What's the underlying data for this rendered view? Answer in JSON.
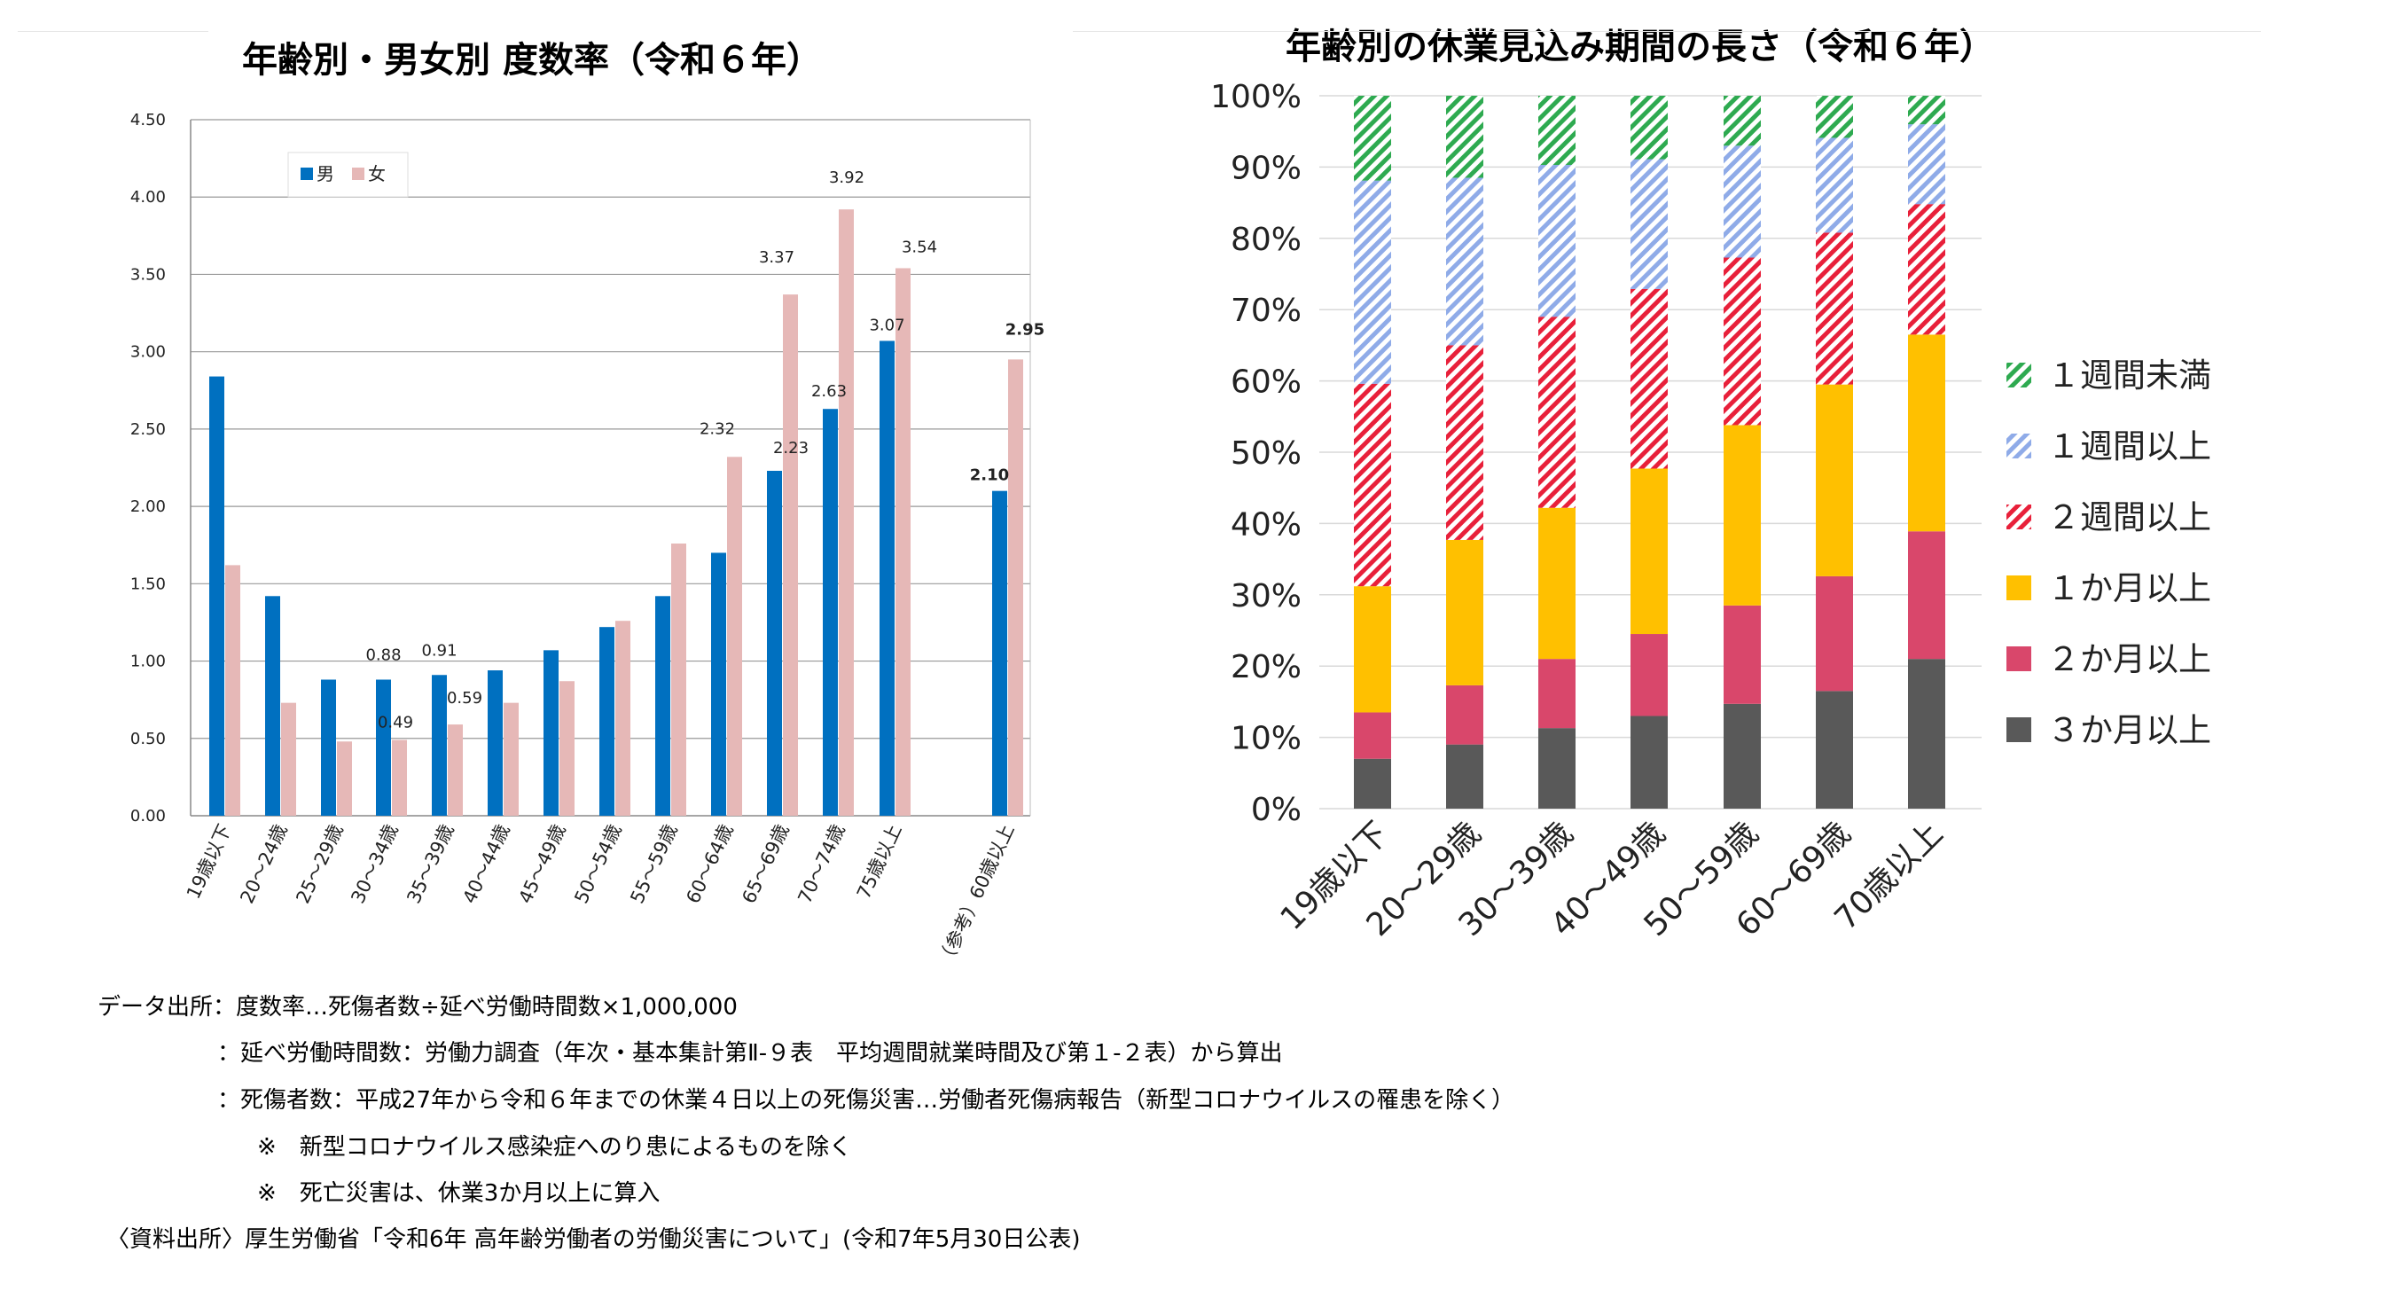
{
  "colors": {
    "male": "#0070c0",
    "female": "#e6b8b7",
    "green": "#2eaa50",
    "blue": "#8fabe8",
    "red": "#e8203a",
    "yellow": "#ffc000",
    "crimson": "#d9476b",
    "darkgray": "#595959"
  },
  "chart_data": [
    {
      "type": "bar",
      "title": "年齢別・男女別 度数率（令和６年）",
      "categories": [
        "19歳以下",
        "20～24歳",
        "25～29歳",
        "30～34歳",
        "35～39歳",
        "40～44歳",
        "45～49歳",
        "50～54歳",
        "55～59歳",
        "60～64歳",
        "65～69歳",
        "70～74歳",
        "75歳以上",
        "（参考）60歳以上"
      ],
      "series": [
        {
          "name": "男",
          "color": "#0070c0",
          "values": [
            2.84,
            1.42,
            0.88,
            0.88,
            0.91,
            0.94,
            1.07,
            1.22,
            1.42,
            1.7,
            2.23,
            2.63,
            3.07,
            2.1
          ]
        },
        {
          "name": "女",
          "color": "#e6b8b7",
          "values": [
            1.62,
            0.73,
            0.48,
            0.49,
            0.59,
            0.73,
            0.87,
            1.26,
            1.76,
            2.32,
            3.37,
            3.92,
            3.54,
            2.95
          ]
        }
      ],
      "labels_male": [
        "",
        "",
        "",
        "0.88",
        "0.91",
        "",
        "",
        "",
        "",
        "",
        "2.23",
        "2.63",
        "3.07",
        "2.10"
      ],
      "labels_female": [
        "",
        "",
        "",
        "0.49",
        "0.59",
        "",
        "",
        "",
        "",
        "2.32",
        "3.37",
        "3.92",
        "3.54",
        "2.95"
      ],
      "ylim": [
        0,
        4.5
      ],
      "yticks": [
        "0.00",
        "0.50",
        "1.00",
        "1.50",
        "2.00",
        "2.50",
        "3.00",
        "3.50",
        "4.00",
        "4.50"
      ],
      "legend": [
        "男",
        "女"
      ],
      "legend_position": "top-left",
      "grid": true
    },
    {
      "type": "bar",
      "stacked": true,
      "percent": true,
      "title": "年齢別の休業見込み期間の長さ（令和６年）",
      "categories": [
        "19歳以下",
        "20～29歳",
        "30～39歳",
        "40～49歳",
        "50～59歳",
        "60～69歳",
        "70歳以上"
      ],
      "yticks": [
        "0%",
        "10%",
        "20%",
        "30%",
        "40%",
        "50%",
        "60%",
        "70%",
        "80%",
        "90%",
        "100%"
      ],
      "legend_position": "right",
      "series": [
        {
          "name": "３か月以上",
          "color": "#595959",
          "pattern": "solid",
          "values": [
            7.0,
            9.0,
            11.3,
            13.0,
            14.7,
            16.5,
            21.0
          ]
        },
        {
          "name": "２か月以上",
          "color": "#d9476b",
          "pattern": "solid",
          "values": [
            6.5,
            8.3,
            9.7,
            11.5,
            13.8,
            16.1,
            17.9
          ]
        },
        {
          "name": "１か月以上",
          "color": "#ffc000",
          "pattern": "solid",
          "values": [
            17.7,
            20.4,
            21.2,
            23.2,
            25.3,
            26.9,
            27.6
          ]
        },
        {
          "name": "２週間以上",
          "color": "#e8203a",
          "pattern": "hatch",
          "values": [
            28.4,
            27.3,
            26.8,
            25.2,
            23.5,
            21.3,
            18.3
          ]
        },
        {
          "name": "１週間以上",
          "color": "#8fabe8",
          "pattern": "hatch",
          "values": [
            28.5,
            23.5,
            21.3,
            18.2,
            15.7,
            13.3,
            11.2
          ]
        },
        {
          "name": "１週間未満",
          "color": "#2eaa50",
          "pattern": "hatch",
          "values": [
            11.9,
            11.5,
            9.7,
            8.9,
            7.0,
            5.9,
            4.0
          ]
        }
      ],
      "legend_order": [
        "１週間未満",
        "１週間以上",
        "２週間以上",
        "１か月以上",
        "２か月以上",
        "３か月以上"
      ]
    }
  ],
  "notes": [
    "データ出所：度数率…死傷者数÷延べ労働時間数×1,000,000",
    "：延べ労働時間数：労働力調査（年次・基本集計第Ⅱ-９表　平均週間就業時間及び第１-２表）から算出",
    "：死傷者数：平成27年から令和６年までの休業４日以上の死傷災害…労働者死傷病報告（新型コロナウイルスの罹患を除く）",
    "※　新型コロナウイルス感染症へのり患によるものを除く",
    "※　死亡災害は、休業3か月以上に算入",
    "〈資料出所〉厚生労働省「令和6年 高年齢労働者の労働災害について」(令和7年5月30日公表)"
  ]
}
